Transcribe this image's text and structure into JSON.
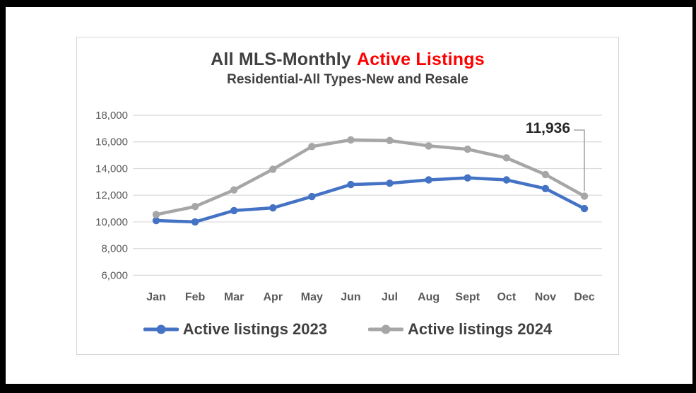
{
  "page": {
    "frame_color": "#000000",
    "canvas_color": "#ffffff"
  },
  "chart_data": {
    "type": "line",
    "title": {
      "prefix": "All MLS-Monthly",
      "highlight": "Active Listings",
      "prefix_color": "#404040",
      "highlight_color": "#ff0000"
    },
    "subtitle": "Residential-All Types-New and Resale",
    "categories": [
      "Jan",
      "Feb",
      "Mar",
      "Apr",
      "May",
      "Jun",
      "Jul",
      "Aug",
      "Sept",
      "Oct",
      "Nov",
      "Dec"
    ],
    "series": [
      {
        "name": "Active listings 2023",
        "color": "#4472c4",
        "values": [
          10100,
          10000,
          10850,
          11050,
          11900,
          12800,
          12900,
          13150,
          13300,
          13150,
          12500,
          11000
        ]
      },
      {
        "name": "Active listings 2024",
        "color": "#a6a6a6",
        "values": [
          10550,
          11150,
          12400,
          13950,
          15650,
          16150,
          16100,
          15700,
          15450,
          14800,
          13550,
          11936
        ]
      }
    ],
    "y_axis": {
      "min": 6000,
      "max": 18000,
      "step": 2000,
      "tick_labels": [
        "6,000",
        "8,000",
        "10,000",
        "12,000",
        "14,000",
        "16,000",
        "18,000"
      ],
      "label_color": "#595959"
    },
    "x_axis": {
      "label_color": "#595959"
    },
    "grid": true,
    "gridline_color": "#d9d9d9",
    "legend_position": "bottom",
    "annotation": {
      "label": "11,936",
      "series_index": 1,
      "category_index": 11,
      "text_color": "#262626",
      "line_color": "#a6a6a6"
    }
  }
}
